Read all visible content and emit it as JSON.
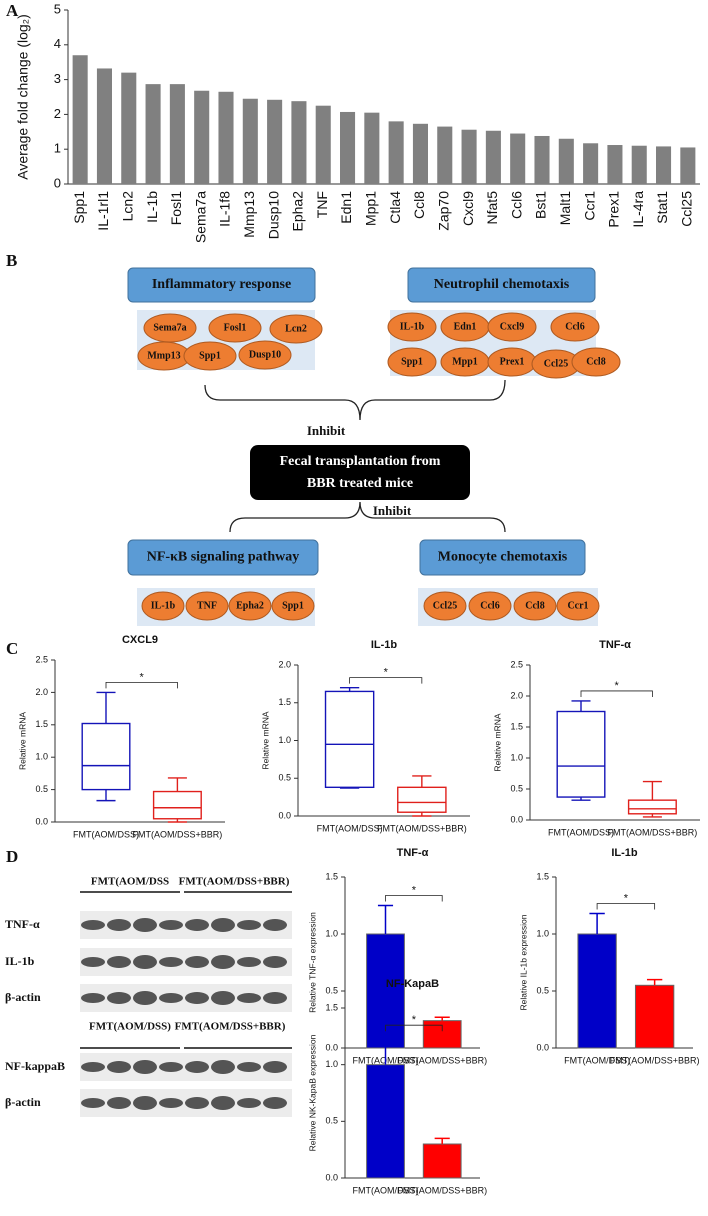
{
  "panel_labels": [
    "A",
    "B",
    "C",
    "D"
  ],
  "chart_data": [
    {
      "type": "bar",
      "ylabel": "Average fold change (log₂)",
      "color": "#808080",
      "categories": [
        "Spp1",
        "IL-1rl1",
        "Lcn2",
        "IL-1b",
        "Fosl1",
        "Sema7a",
        "IL-1f8",
        "Mmp13",
        "Dusp10",
        "Epha2",
        "TNF",
        "Edn1",
        "Mpp1",
        "Ctla4",
        "Ccl8",
        "Zap70",
        "Cxcl9",
        "Nfat5",
        "Ccl6",
        "Bst1",
        "Malt1",
        "Ccr1",
        "Prex1",
        "IL-4ra",
        "Stat1",
        "Ccl25"
      ],
      "values": [
        3.7,
        3.32,
        3.2,
        2.87,
        2.87,
        2.68,
        2.65,
        2.45,
        2.42,
        2.38,
        2.25,
        2.07,
        2.05,
        1.8,
        1.73,
        1.65,
        1.56,
        1.53,
        1.45,
        1.38,
        1.3,
        1.17,
        1.12,
        1.1,
        1.08,
        1.05
      ],
      "ylim": [
        0,
        5
      ],
      "yticks": [
        0,
        1,
        2,
        3,
        4,
        5
      ]
    },
    {
      "type": "box",
      "title": "CXCL9",
      "ylabel": "Relative mRNA",
      "categories": [
        "FMT(AOM/DSS)",
        "FMT(AOM/DSS+BBR)"
      ],
      "colors": [
        "#1414b8",
        "#e0201c"
      ],
      "boxes": [
        {
          "min": 0.33,
          "q1": 0.5,
          "median": 0.87,
          "q3": 1.52,
          "max": 2.0
        },
        {
          "min": 0.0,
          "q1": 0.05,
          "median": 0.22,
          "q3": 0.47,
          "max": 0.68
        }
      ],
      "annotation": "*",
      "ylim": [
        0,
        2.5
      ],
      "yticks": [
        {
          "value": 0,
          "label": "0.0"
        },
        0.5,
        {
          "value": 1,
          "label": "1.0"
        },
        1.5,
        {
          "value": 2,
          "label": "2.0"
        },
        2.5
      ]
    },
    {
      "type": "box",
      "title": "IL-1b",
      "ylabel": "Relative mRNA",
      "categories": [
        "FMT(AOM/DSS)",
        "FMT(AOM/DSS+BBR)"
      ],
      "colors": [
        "#1414b8",
        "#e0201c"
      ],
      "boxes": [
        {
          "min": 0.37,
          "q1": 0.38,
          "median": 0.95,
          "q3": 1.65,
          "max": 1.7
        },
        {
          "min": 0.0,
          "q1": 0.05,
          "median": 0.18,
          "q3": 0.38,
          "max": 0.53
        }
      ],
      "annotation": "*",
      "ylim": [
        0,
        2
      ],
      "yticks": [
        {
          "value": 0,
          "label": "0.0"
        },
        0.5,
        {
          "value": 1,
          "label": "1.0"
        },
        1.5,
        {
          "value": 2,
          "label": "2.0"
        }
      ]
    },
    {
      "type": "box",
      "title": "TNF-α",
      "ylabel": "Relative mRNA",
      "categories": [
        "FMT(AOM/DSS)",
        "FMT(AOM/DSS+BBR)"
      ],
      "colors": [
        "#1414b8",
        "#e0201c"
      ],
      "boxes": [
        {
          "min": 0.32,
          "q1": 0.37,
          "median": 0.87,
          "q3": 1.75,
          "max": 1.92
        },
        {
          "min": 0.05,
          "q1": 0.1,
          "median": 0.18,
          "q3": 0.32,
          "max": 0.62
        }
      ],
      "annotation": "*",
      "ylim": [
        0,
        2.5
      ],
      "yticks": [
        {
          "value": 0,
          "label": "0.0"
        },
        0.5,
        {
          "value": 1,
          "label": "1.0"
        },
        1.5,
        {
          "value": 2,
          "label": "2.0"
        },
        2.5
      ]
    },
    {
      "type": "bar",
      "title": "TNF-α",
      "ylabel": "Relative TNF-α expression",
      "categories": [
        "FMT(AOM/DSS)",
        "FMT(AOM/DSS+BBR)"
      ],
      "colors": [
        "#0000c8",
        "#ff0000"
      ],
      "values": [
        1.0,
        0.24
      ],
      "errors": [
        0.25,
        0.03
      ],
      "annotation": "*",
      "ylim": [
        0,
        1.5
      ],
      "yticks": [
        {
          "value": 0,
          "label": "0.0"
        },
        0.5,
        {
          "value": 1,
          "label": "1.0"
        },
        1.5
      ]
    },
    {
      "type": "bar",
      "title": "IL-1b",
      "ylabel": "Relative IL-1b expression",
      "categories": [
        "FMT(AOM/DSS)",
        "FMT(AOM/DSS+BBR)"
      ],
      "colors": [
        "#0000c8",
        "#ff0000"
      ],
      "values": [
        1.0,
        0.55
      ],
      "errors": [
        0.18,
        0.05
      ],
      "annotation": "*",
      "ylim": [
        0,
        1.5
      ],
      "yticks": [
        {
          "value": 0,
          "label": "0.0"
        },
        0.5,
        {
          "value": 1,
          "label": "1.0"
        },
        1.5
      ]
    },
    {
      "type": "bar",
      "title": "NF-KapaB",
      "ylabel": "Relative NK-KapaB expression",
      "categories": [
        "FMT(AOM/DSS)",
        "FMT(AOM/DSS+BBR)"
      ],
      "colors": [
        "#0000c8",
        "#ff0000"
      ],
      "values": [
        1.0,
        0.3
      ],
      "errors": [
        0.26,
        0.05
      ],
      "annotation": "*",
      "ylim": [
        0,
        1.5
      ],
      "yticks": [
        {
          "value": 0,
          "label": "0.0"
        },
        0.5,
        {
          "value": 1,
          "label": "1.0"
        },
        1.5
      ]
    }
  ],
  "diagram": {
    "groups": [
      {
        "title": "Inflammatory response",
        "items": [
          "Sema7a",
          "Fosl1",
          "Lcn2",
          "Mmp13",
          "Spp1",
          "Dusp10"
        ]
      },
      {
        "title": "Neutrophil chemotaxis",
        "items": [
          "IL-1b",
          "Edn1",
          "Cxcl9",
          "Ccl6",
          "Spp1",
          "Mpp1",
          "Prex1",
          "Ccl25",
          "Ccl8"
        ]
      },
      {
        "title": "NF-κB signaling pathway",
        "items": [
          "IL-1b",
          "TNF",
          "Epha2",
          "Spp1"
        ]
      },
      {
        "title": "Monocyte chemotaxis",
        "items": [
          "Ccl25",
          "Ccl6",
          "Ccl8",
          "Ccr1"
        ]
      }
    ],
    "center": [
      "Fecal transplantation from",
      "BBR treated mice"
    ],
    "inhibit": [
      "Inhibit",
      "Inhibit"
    ]
  },
  "blots": [
    {
      "headers": [
        "FMT(AOM/DSS",
        "FMT(AOM/DSS+BBR)"
      ],
      "rows": [
        "TNF-α",
        "IL-1b",
        "β-actin"
      ]
    },
    {
      "headers": [
        "FMT(AOM/DSS)",
        "FMT(AOM/DSS+BBR)"
      ],
      "rows": [
        "NF-kappaB",
        "β-actin"
      ]
    }
  ]
}
